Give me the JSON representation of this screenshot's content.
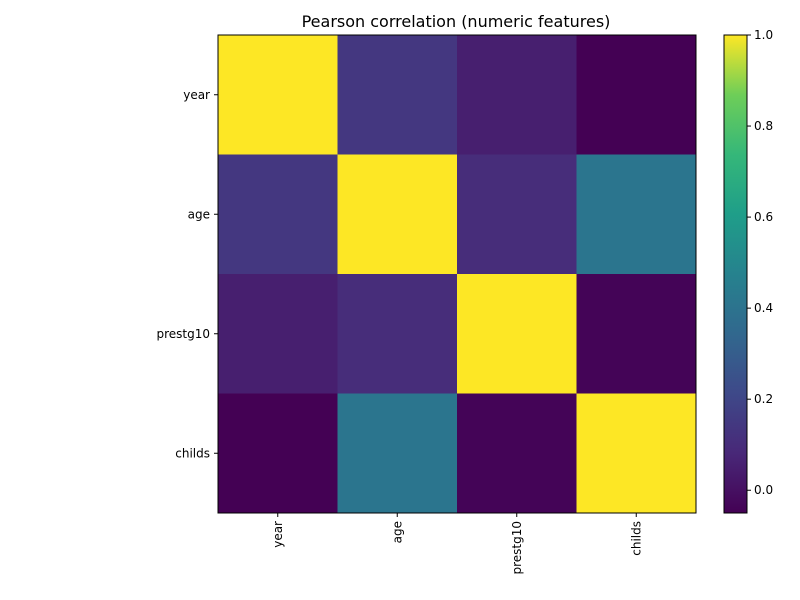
{
  "chart_data": {
    "type": "heatmap",
    "title": "Pearson correlation (numeric features)",
    "xlabel": "",
    "ylabel": "",
    "x_categories": [
      "year",
      "age",
      "prestg10",
      "childs"
    ],
    "y_categories": [
      "year",
      "age",
      "prestg10",
      "childs"
    ],
    "values": [
      [
        1.0,
        0.14,
        0.05,
        -0.05
      ],
      [
        0.14,
        1.0,
        0.1,
        0.41
      ],
      [
        0.05,
        0.1,
        1.0,
        -0.04
      ],
      [
        -0.05,
        0.41,
        -0.04,
        1.0
      ]
    ],
    "colorbar": {
      "range": [
        -0.05,
        1.0
      ],
      "ticks": [
        0.0,
        0.2,
        0.4,
        0.6,
        0.8,
        1.0
      ],
      "tick_labels": [
        "0.0",
        "0.2",
        "0.4",
        "0.6",
        "0.8",
        "1.0"
      ],
      "colormap": "viridis"
    },
    "x_tick_rotation": "vertical",
    "grid": false
  }
}
